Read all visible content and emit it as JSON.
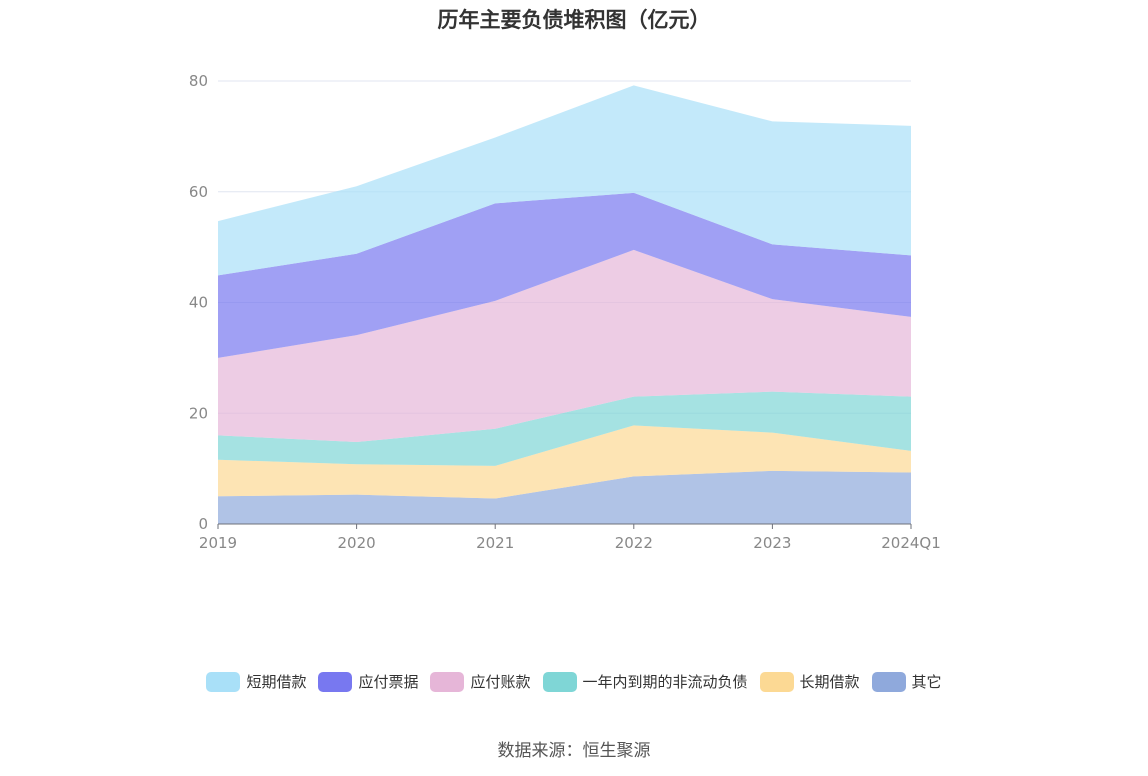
{
  "chart_data": {
    "type": "area",
    "stacked": true,
    "title": "历年主要负债堆积图（亿元）",
    "categories": [
      "2019",
      "2020",
      "2021",
      "2022",
      "2023",
      "2024Q1"
    ],
    "ylim": [
      0,
      80
    ],
    "yticks": [
      "0",
      "20",
      "40",
      "60",
      "80"
    ],
    "grid": true,
    "legend_position": "bottom",
    "series": [
      {
        "name": "其它",
        "color": "#8fa9dc",
        "values": [
          5.0,
          5.3,
          4.6,
          8.6,
          9.6,
          9.3
        ]
      },
      {
        "name": "长期借款",
        "color": "#fcd994",
        "values": [
          6.6,
          5.5,
          5.9,
          9.2,
          6.9,
          3.9
        ]
      },
      {
        "name": "一年内到期的非流动负债",
        "color": "#7fd6d6",
        "values": [
          4.4,
          4.0,
          6.7,
          5.2,
          7.4,
          9.8
        ]
      },
      {
        "name": "应付账款",
        "color": "#e6b6d8",
        "values": [
          14.0,
          19.3,
          23.1,
          26.5,
          16.7,
          14.4
        ]
      },
      {
        "name": "应付票据",
        "color": "#7878f0",
        "values": [
          14.9,
          14.7,
          17.6,
          10.3,
          9.9,
          11.1
        ]
      },
      {
        "name": "短期借款",
        "color": "#a9e0f8",
        "values": [
          9.8,
          12.2,
          11.9,
          19.4,
          22.2,
          23.4
        ]
      }
    ]
  },
  "legend": [
    {
      "label": "短期借款",
      "color": "#a9e0f8"
    },
    {
      "label": "应付票据",
      "color": "#7878f0"
    },
    {
      "label": "应付账款",
      "color": "#e6b6d8"
    },
    {
      "label": "一年内到期的非流动负债",
      "color": "#7fd6d6"
    },
    {
      "label": "长期借款",
      "color": "#fcd994"
    },
    {
      "label": "其它",
      "color": "#8fa9dc"
    }
  ],
  "source": "数据来源：恒生聚源"
}
